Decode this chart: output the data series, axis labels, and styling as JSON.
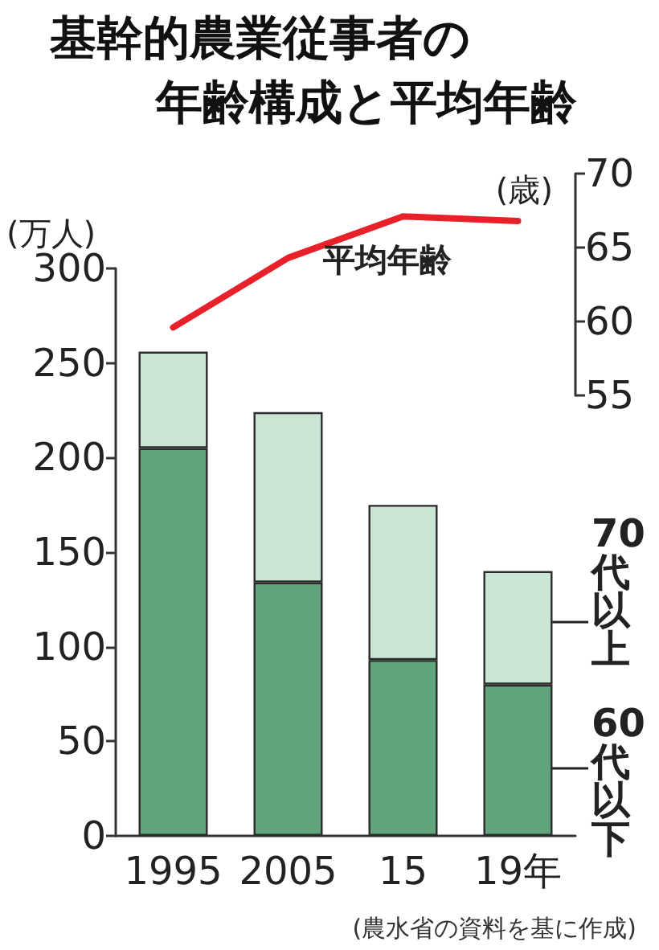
{
  "chart_data": [
    {
      "type": "line",
      "title": "基幹的農業従事者の",
      "subtitle": "年齢構成と平均年齢",
      "ylabel": "(歳)",
      "categories": [
        null,
        null,
        null,
        null
      ],
      "series": [
        {
          "name": "平均年齢",
          "color": "#e8202a",
          "values": [
            59.6,
            64.3,
            67.1,
            66.8
          ]
        }
      ],
      "ylim": [
        55,
        70
      ],
      "yticks": [
        55,
        60,
        65,
        70
      ],
      "marker": "none",
      "line_style": "solid"
    },
    {
      "type": "bar",
      "ylabel": "(万人)",
      "categories": [
        "1995",
        "2005",
        "15",
        "19年"
      ],
      "stacked": true,
      "series": [
        {
          "name": "60代以下",
          "color": "#62a57c",
          "values": [
            205,
            134,
            93,
            80
          ]
        },
        {
          "name": "70代以上",
          "color": "#c9e6d4",
          "values": [
            51,
            90,
            82,
            60
          ]
        }
      ],
      "ylim": [
        0,
        300
      ],
      "yticks": [
        0,
        50,
        100,
        150,
        200,
        250,
        300
      ],
      "annotations": [
        "(農水省の資料を基に作成)"
      ]
    }
  ]
}
